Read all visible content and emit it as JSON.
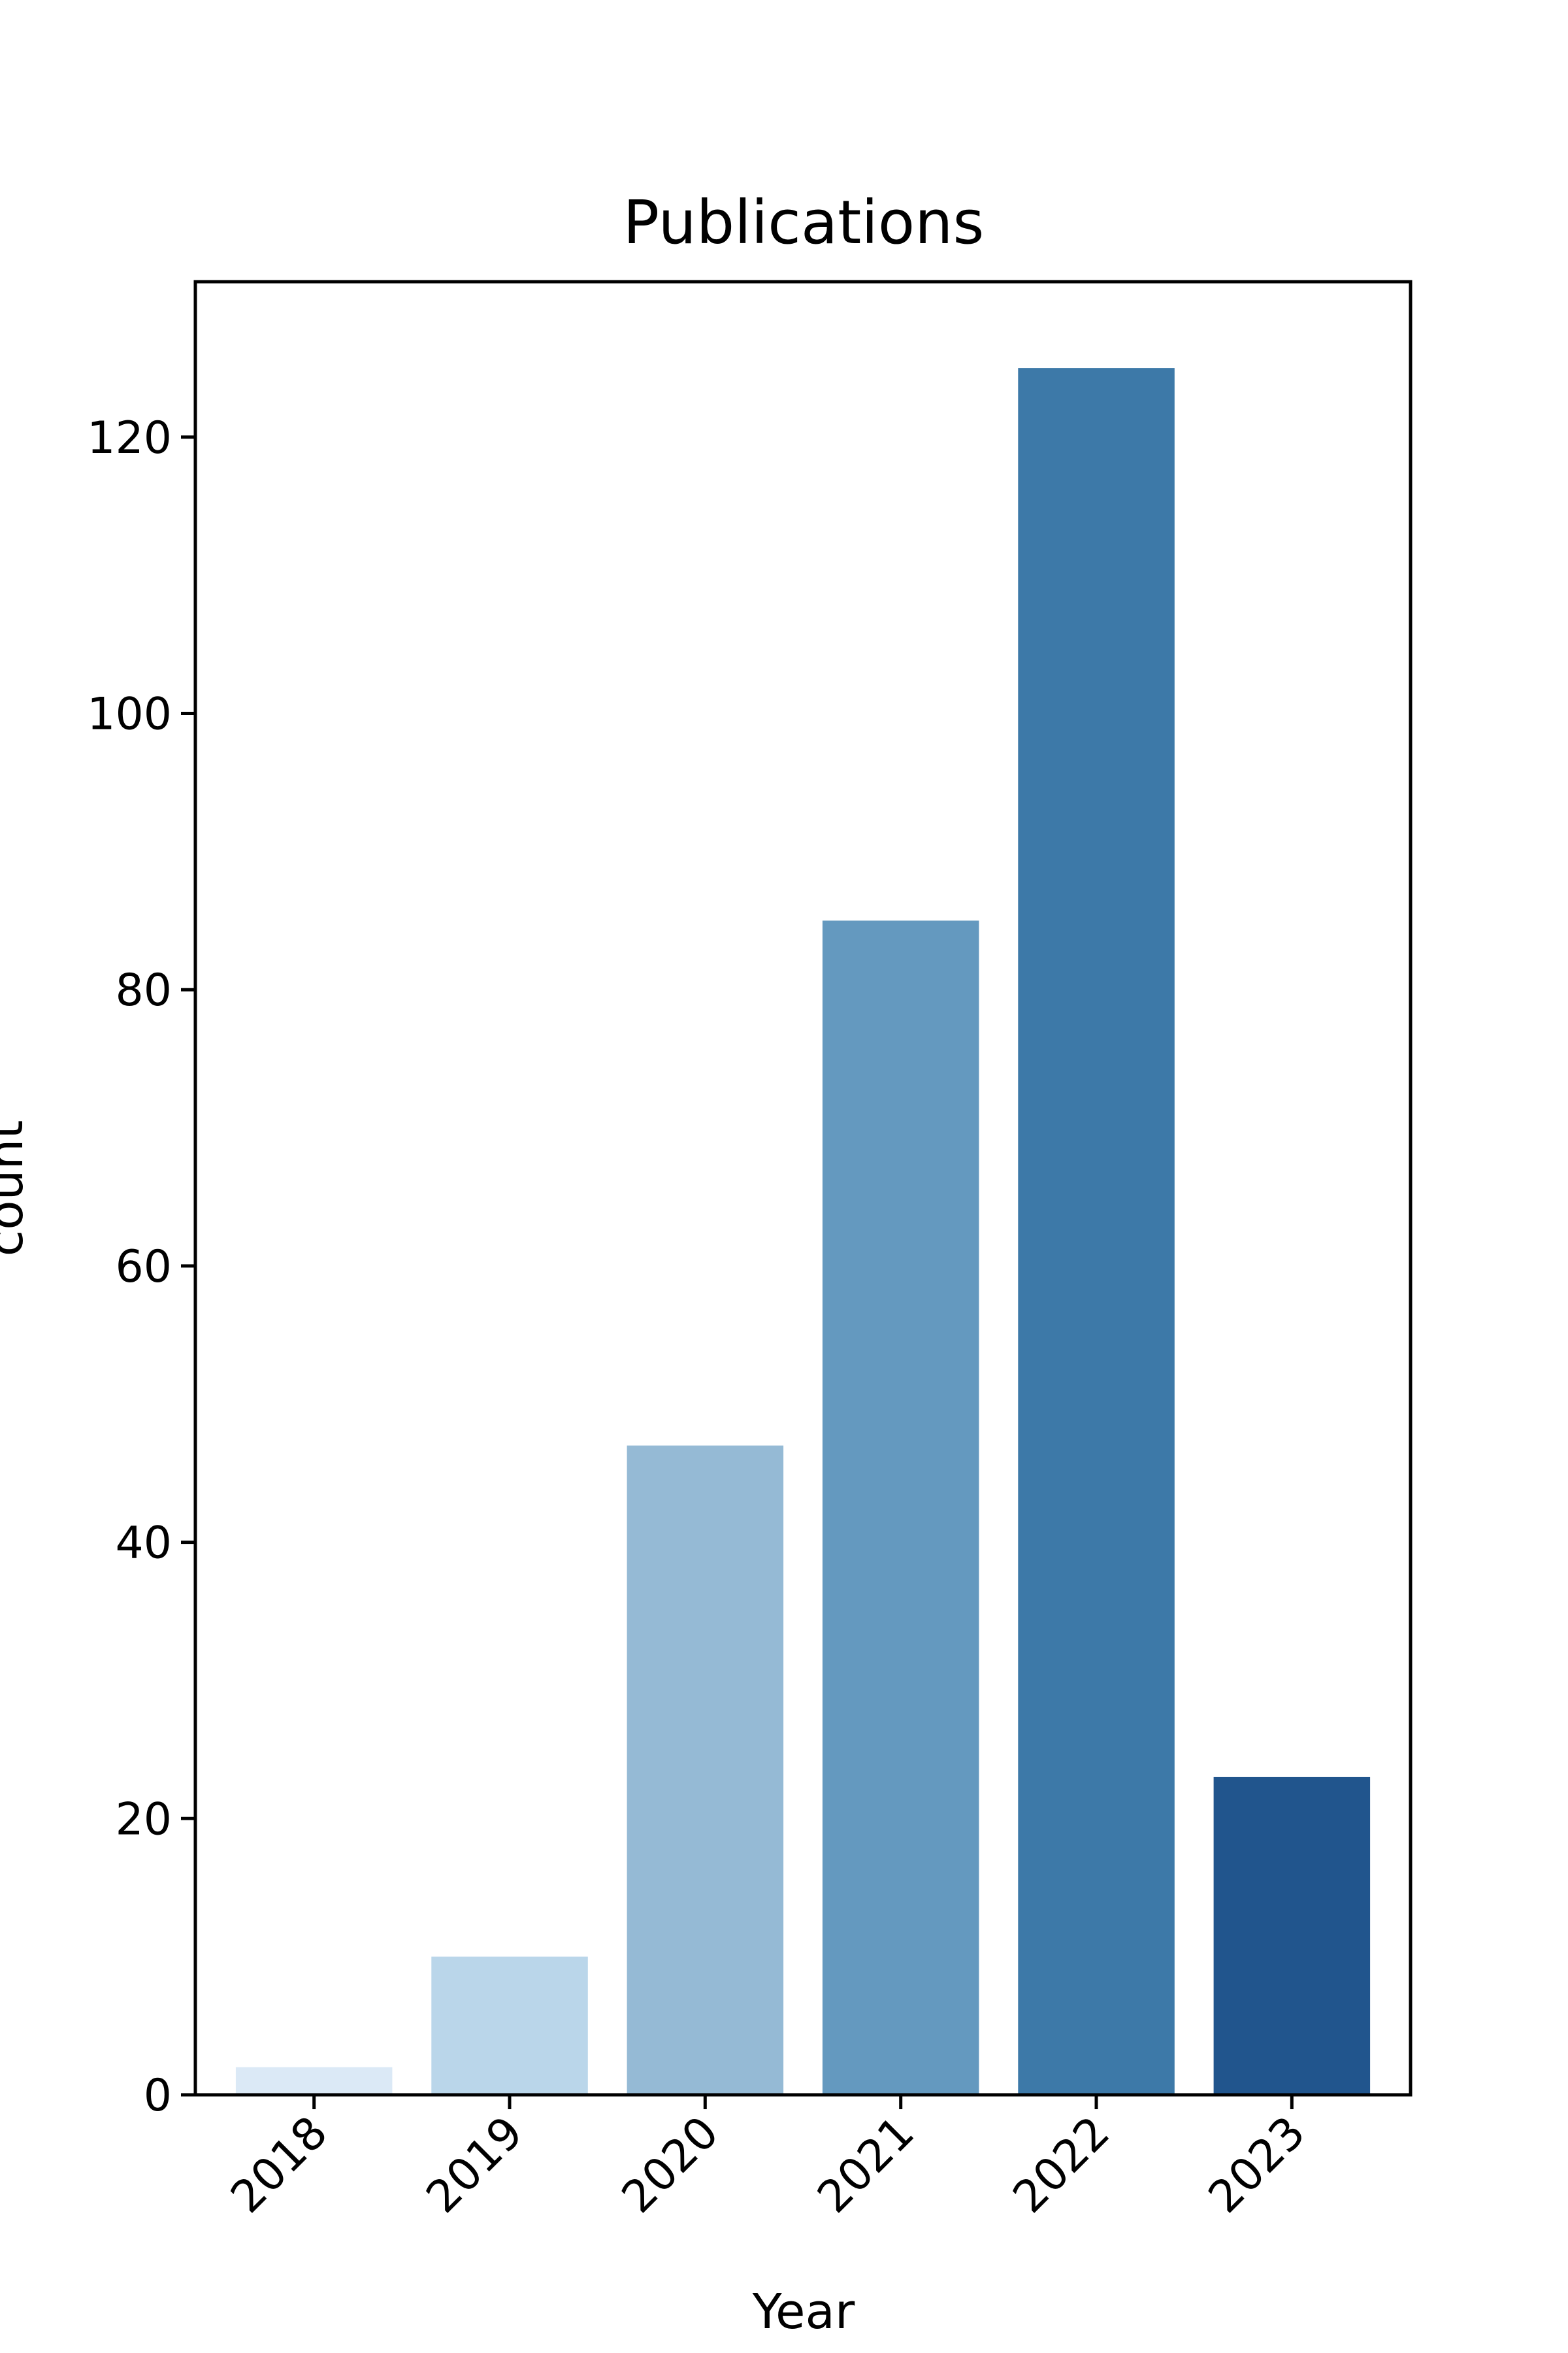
{
  "chart_data": {
    "type": "bar",
    "title": "Publications",
    "xlabel": "Year",
    "ylabel": "count",
    "categories": [
      "2018",
      "2019",
      "2020",
      "2021",
      "2022",
      "2023"
    ],
    "values": [
      2,
      10,
      47,
      85,
      125,
      23
    ],
    "colors": [
      "#dbe9f6",
      "#bad6ea",
      "#95bad5",
      "#6499bf",
      "#3d79a8",
      "#21558d"
    ],
    "ylim": [
      0,
      131.25
    ],
    "yticks": [
      0,
      20,
      40,
      60,
      80,
      100,
      120
    ],
    "grid": false,
    "legend": false
  }
}
